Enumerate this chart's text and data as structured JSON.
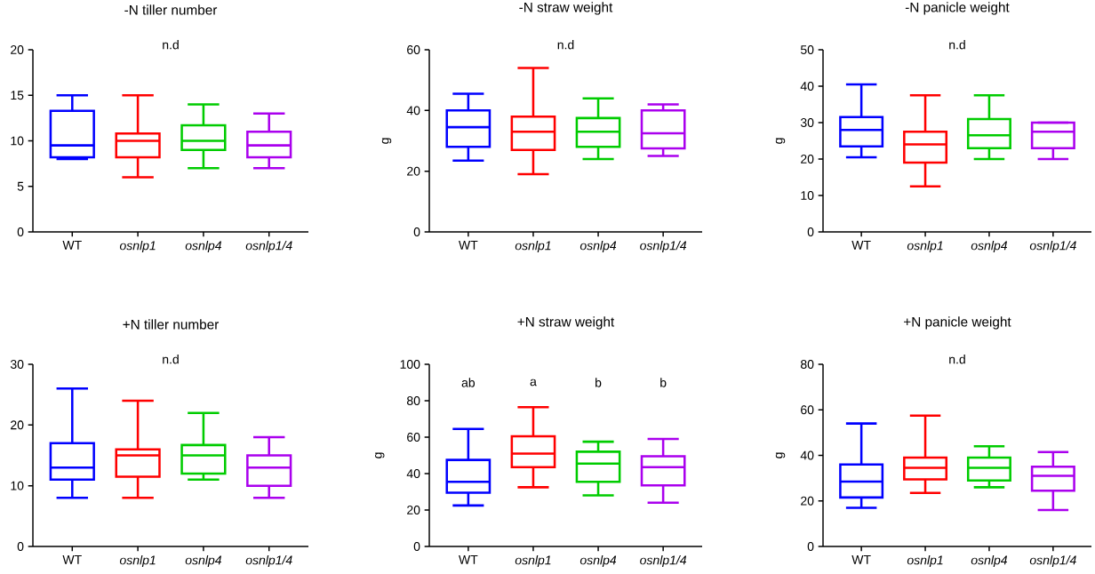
{
  "chart_data": [
    {
      "type": "box",
      "title": "-N tiller number",
      "categories": [
        "WT",
        "*osnlp1*",
        "*osnlp4*",
        "*osnlp1/4*"
      ],
      "colors": [
        "#0000ff",
        "#ff0000",
        "#00cc00",
        "#aa00ee"
      ],
      "ylim": [
        0,
        20
      ],
      "yticks": [
        0,
        5,
        10,
        15,
        20
      ],
      "annotations": [
        "n.d"
      ],
      "boxes": [
        {
          "low": 8,
          "q1": 8.2,
          "median": 9.5,
          "q3": 13.3,
          "high": 15
        },
        {
          "low": 6,
          "q1": 8.2,
          "median": 10,
          "q3": 10.8,
          "high": 15
        },
        {
          "low": 7,
          "q1": 9,
          "median": 10,
          "q3": 11.7,
          "high": 14
        },
        {
          "low": 7,
          "q1": 8.2,
          "median": 9.5,
          "q3": 11,
          "high": 13
        }
      ]
    },
    {
      "type": "box",
      "title": "-N straw weight",
      "ylabel": "g",
      "categories": [
        "WT",
        "*osnlp1*",
        "*osnlp4*",
        "*osnlp1/4*"
      ],
      "colors": [
        "#0000ff",
        "#ff0000",
        "#00cc00",
        "#aa00ee"
      ],
      "ylim": [
        0,
        60
      ],
      "yticks": [
        0,
        20,
        40,
        60
      ],
      "annotations": [
        "n.d"
      ],
      "boxes": [
        {
          "low": 23.5,
          "q1": 28,
          "median": 34.5,
          "q3": 40,
          "high": 45.5
        },
        {
          "low": 19,
          "q1": 27,
          "median": 33,
          "q3": 38,
          "high": 54
        },
        {
          "low": 24,
          "q1": 28,
          "median": 33,
          "q3": 37.5,
          "high": 44
        },
        {
          "low": 25,
          "q1": 27.5,
          "median": 32.5,
          "q3": 40,
          "high": 42
        }
      ]
    },
    {
      "type": "box",
      "title": "-N panicle weight",
      "ylabel": "g",
      "categories": [
        "WT",
        "*osnlp1*",
        "*osnlp4*",
        "*osnlp1/4*"
      ],
      "colors": [
        "#0000ff",
        "#ff0000",
        "#00cc00",
        "#aa00ee"
      ],
      "ylim": [
        0,
        50
      ],
      "yticks": [
        0,
        10,
        20,
        30,
        40,
        50
      ],
      "annotations": [
        "n.d"
      ],
      "boxes": [
        {
          "low": 20.5,
          "q1": 23.5,
          "median": 28,
          "q3": 31.5,
          "high": 40.5
        },
        {
          "low": 12.5,
          "q1": 19,
          "median": 24,
          "q3": 27.5,
          "high": 37.5
        },
        {
          "low": 20,
          "q1": 23,
          "median": 26.5,
          "q3": 31,
          "high": 37.5
        },
        {
          "low": 20,
          "q1": 23,
          "median": 27.5,
          "q3": 30,
          "high": 30
        }
      ]
    },
    {
      "type": "box",
      "title": "+N tiller number",
      "categories": [
        "WT",
        "*osnlp1*",
        "*osnlp4*",
        "*osnlp1/4*"
      ],
      "colors": [
        "#0000ff",
        "#ff0000",
        "#00cc00",
        "#aa00ee"
      ],
      "ylim": [
        0,
        30
      ],
      "yticks": [
        0,
        10,
        20,
        30
      ],
      "annotations": [
        "n.d"
      ],
      "boxes": [
        {
          "low": 8,
          "q1": 11,
          "median": 13,
          "q3": 17,
          "high": 26
        },
        {
          "low": 8,
          "q1": 11.5,
          "median": 15,
          "q3": 16,
          "high": 24
        },
        {
          "low": 11,
          "q1": 12,
          "median": 15,
          "q3": 16.7,
          "high": 22
        },
        {
          "low": 8,
          "q1": 10,
          "median": 13,
          "q3": 15,
          "high": 18
        }
      ]
    },
    {
      "type": "box",
      "title": "+N straw weight",
      "ylabel": "g",
      "categories": [
        "WT",
        "*osnlp1*",
        "*osnlp4*",
        "*osnlp1/4*"
      ],
      "colors": [
        "#0000ff",
        "#ff0000",
        "#00cc00",
        "#aa00ee"
      ],
      "ylim": [
        0,
        100
      ],
      "yticks": [
        0,
        20,
        40,
        60,
        80,
        100
      ],
      "annotations": [
        "ab",
        "a",
        "b",
        "b"
      ],
      "boxes": [
        {
          "low": 22.5,
          "q1": 29.5,
          "median": 35.5,
          "q3": 47.5,
          "high": 64.5
        },
        {
          "low": 32.5,
          "q1": 43.5,
          "median": 51,
          "q3": 60.5,
          "high": 76.5
        },
        {
          "low": 28,
          "q1": 35.5,
          "median": 45.5,
          "q3": 52,
          "high": 57.5
        },
        {
          "low": 24,
          "q1": 33.5,
          "median": 43.5,
          "q3": 49.5,
          "high": 59
        }
      ]
    },
    {
      "type": "box",
      "title": "+N panicle weight",
      "ylabel": "g",
      "categories": [
        "WT",
        "*osnlp1*",
        "*osnlp4*",
        "*osnlp1/4*"
      ],
      "colors": [
        "#0000ff",
        "#ff0000",
        "#00cc00",
        "#aa00ee"
      ],
      "ylim": [
        0,
        80
      ],
      "yticks": [
        0,
        20,
        40,
        60,
        80
      ],
      "annotations": [
        "n.d"
      ],
      "boxes": [
        {
          "low": 17,
          "q1": 21.5,
          "median": 28.5,
          "q3": 36,
          "high": 54
        },
        {
          "low": 23.5,
          "q1": 29.5,
          "median": 34.5,
          "q3": 39,
          "high": 57.5
        },
        {
          "low": 26,
          "q1": 29,
          "median": 34.5,
          "q3": 39,
          "high": 44
        },
        {
          "low": 16,
          "q1": 24.5,
          "median": 31,
          "q3": 35,
          "high": 41.5
        }
      ]
    }
  ]
}
